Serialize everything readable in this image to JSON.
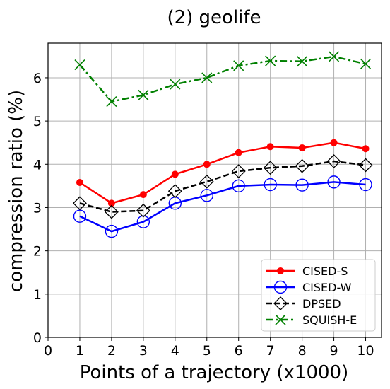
{
  "chart_data": {
    "type": "line",
    "title": "(2) geolife",
    "xlabel": "Points of a trajectory (x1000)",
    "ylabel": "compression ratio (%)",
    "xlim": [
      0,
      10.5
    ],
    "ylim": [
      0,
      6.8
    ],
    "xticks": [
      0,
      1,
      2,
      3,
      4,
      5,
      6,
      7,
      8,
      9,
      10
    ],
    "yticks": [
      0,
      1,
      2,
      3,
      4,
      5,
      6
    ],
    "grid": true,
    "legend_position": "lower-right",
    "x": [
      1,
      2,
      3,
      4,
      5,
      6,
      7,
      8,
      9,
      10
    ],
    "series": [
      {
        "name": "CISED-S",
        "color": "#ff0000",
        "marker": "filled-circle",
        "dash": "solid",
        "values": [
          3.58,
          3.1,
          3.3,
          3.77,
          4.0,
          4.27,
          4.41,
          4.38,
          4.5,
          4.36
        ]
      },
      {
        "name": "CISED-W",
        "color": "#0000ff",
        "marker": "open-circle",
        "dash": "solid",
        "values": [
          2.8,
          2.45,
          2.67,
          3.1,
          3.28,
          3.5,
          3.53,
          3.52,
          3.59,
          3.53
        ]
      },
      {
        "name": "DPSED",
        "color": "#000000",
        "marker": "open-diamond",
        "dash": "dashed",
        "values": [
          3.1,
          2.9,
          2.93,
          3.38,
          3.6,
          3.84,
          3.92,
          3.96,
          4.07,
          3.98
        ]
      },
      {
        "name": "SQUISH-E",
        "color": "#008000",
        "marker": "x",
        "dash": "dashdot",
        "values": [
          6.3,
          5.45,
          5.6,
          5.85,
          6.0,
          6.28,
          6.39,
          6.38,
          6.49,
          6.32
        ]
      }
    ]
  }
}
